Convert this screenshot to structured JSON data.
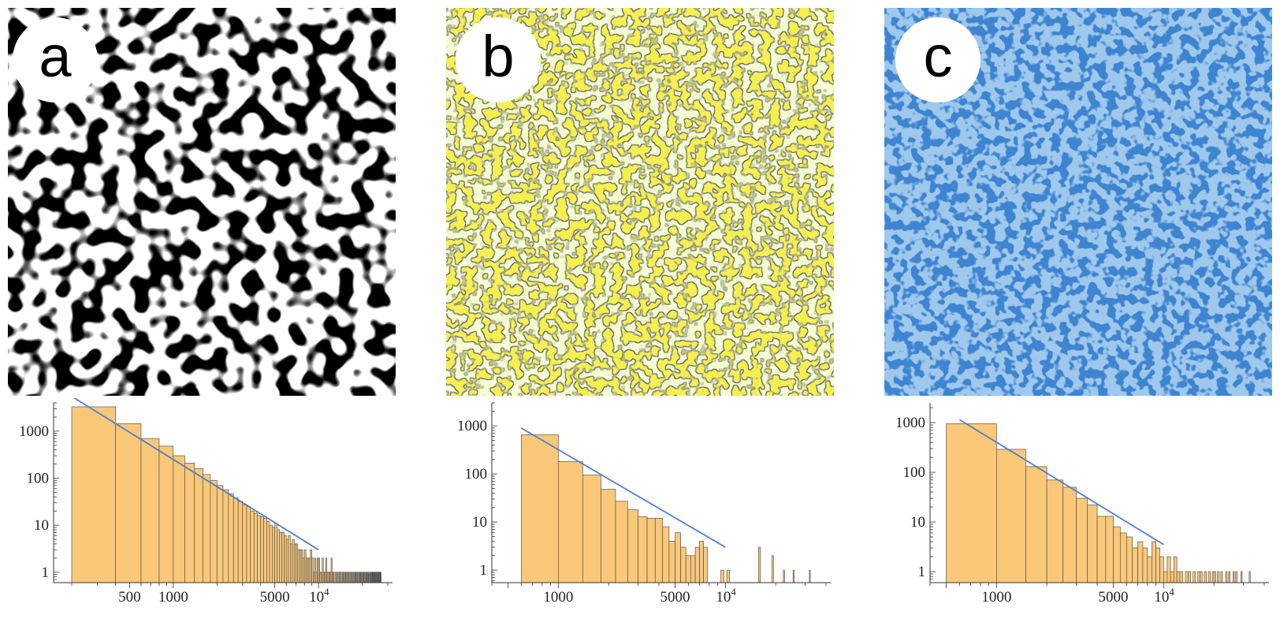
{
  "panels": [
    {
      "label": "a",
      "pattern": {
        "background": "#ffffff",
        "blob": "#000000",
        "stroke": "none",
        "style": "labyrinth"
      },
      "chart_data": {
        "type": "bar",
        "scale": "log-log",
        "xlim": [
          150,
          30000
        ],
        "ylim": [
          0.6,
          4000
        ],
        "x_ticks": [
          {
            "value": 500,
            "label": "500"
          },
          {
            "value": 1000,
            "label": "1000"
          },
          {
            "value": 5000,
            "label": "5000"
          },
          {
            "value": 10000,
            "label": "10",
            "sup": "4"
          }
        ],
        "y_ticks": [
          {
            "value": 1,
            "label": "1"
          },
          {
            "value": 10,
            "label": "10"
          },
          {
            "value": 100,
            "label": "100"
          },
          {
            "value": 1000,
            "label": "1000"
          }
        ],
        "bin_edges": [
          200,
          400,
          600,
          800,
          1000,
          1200,
          1400,
          1600,
          1800,
          2000,
          2200,
          2400,
          2600,
          2800,
          3000,
          3200,
          3400,
          3600,
          3800,
          4000,
          4200,
          4400,
          4600,
          4800,
          5000,
          5200,
          5400,
          5600,
          5800,
          6000,
          6200,
          6400,
          6600,
          6800,
          7000,
          7200,
          7400,
          7600,
          7800,
          8000,
          8200,
          8400,
          8600,
          8800,
          9000,
          9200,
          9400,
          9600,
          9800,
          10000,
          10200,
          10400,
          10600,
          10800,
          11000,
          11200,
          11400,
          11600,
          11800,
          12000,
          12200,
          12400,
          12600,
          12800,
          13000,
          13200,
          13400,
          13600,
          13800,
          14000,
          14200,
          14400,
          14600,
          14800,
          15000,
          15200,
          15400,
          15600,
          15800,
          16000,
          16200,
          16400,
          16600,
          16800,
          17000,
          17200,
          17400,
          17600,
          17800,
          18000,
          18200,
          18400,
          18600,
          18800,
          19000,
          19200,
          19400,
          19600,
          19800,
          20000,
          20200,
          20400,
          20600,
          20800,
          21000,
          21200,
          21400,
          21600,
          21800,
          22000,
          22200,
          22400,
          22600,
          22800,
          23000,
          23200,
          23400,
          23600,
          23800,
          24000,
          24200,
          24400,
          24600,
          24800,
          25000,
          25200,
          25400,
          25600,
          25800,
          26000,
          26200,
          26400,
          26600,
          26800,
          27000
        ],
        "counts": [
          3300,
          1450,
          700,
          480,
          300,
          210,
          160,
          120,
          90,
          70,
          57,
          47,
          38,
          32,
          27,
          25,
          20,
          18,
          16,
          15,
          14,
          12,
          10,
          9,
          11,
          8,
          7,
          7,
          6,
          5,
          6,
          4,
          5,
          4,
          4,
          3,
          3,
          3,
          2,
          3,
          2,
          2,
          2,
          3,
          2,
          1,
          2,
          1,
          2,
          2,
          1,
          1,
          2,
          1,
          1,
          2,
          1,
          1,
          1,
          1,
          2,
          1,
          1,
          0,
          1,
          1,
          0,
          1,
          1,
          1,
          1,
          0,
          1,
          1,
          0,
          1,
          1,
          0,
          1,
          1,
          0,
          1,
          0,
          1,
          1,
          0,
          1,
          0,
          1,
          1,
          0,
          1,
          0,
          1,
          0,
          1,
          1,
          0,
          1,
          0,
          1,
          1,
          0,
          1,
          0,
          1,
          1,
          0,
          1,
          1,
          0,
          1,
          0,
          1,
          1,
          0,
          1,
          1,
          1,
          0,
          1,
          1,
          0,
          1,
          1,
          0,
          1,
          1,
          1,
          1,
          1,
          1,
          1,
          1
        ],
        "fit_line": {
          "x": [
            200,
            10000
          ],
          "y": [
            5500,
            3
          ]
        },
        "colors": {
          "bar": "#fac878",
          "edge": "#555555",
          "fit": "#4f7fc9"
        }
      }
    },
    {
      "label": "b",
      "pattern": {
        "background": "#f5fdd2",
        "blob": "#f5f050",
        "stroke": "#555555",
        "style": "noise"
      },
      "chart_data": {
        "type": "bar",
        "scale": "log-log",
        "xlim": [
          400,
          40000
        ],
        "ylim": [
          0.55,
          3000
        ],
        "x_ticks": [
          {
            "value": 1000,
            "label": "1000"
          },
          {
            "value": 5000,
            "label": "5000"
          },
          {
            "value": 10000,
            "label": "10",
            "sup": "4"
          }
        ],
        "y_ticks": [
          {
            "value": 1,
            "label": "1"
          },
          {
            "value": 10,
            "label": "10"
          },
          {
            "value": 100,
            "label": "100"
          },
          {
            "value": 1000,
            "label": "1000"
          }
        ],
        "bin_edges": [
          600,
          1000,
          1400,
          1800,
          2200,
          2600,
          3000,
          3400,
          3800,
          4200,
          4600,
          5000,
          5400,
          5800,
          6200,
          6600,
          7000,
          7400,
          7800,
          8200,
          8600,
          9000,
          9400,
          9800,
          10200,
          10600,
          11000,
          11400,
          11800,
          12200,
          12600,
          13000,
          13400,
          13800,
          14200,
          14600,
          15000,
          15400,
          15800,
          16200,
          16600,
          17000,
          17400,
          17800,
          18200,
          18600,
          19000,
          19400,
          19800,
          20200,
          20600,
          21000,
          21400,
          21800,
          22200,
          22600,
          23000,
          23400,
          23800,
          24200,
          24600,
          25000,
          25400,
          25800,
          26200,
          26600,
          27000,
          27400,
          27800,
          28200,
          28600,
          29000,
          29400,
          29800,
          30200,
          30600,
          31000,
          31400,
          31800,
          32200,
          32600
        ],
        "counts": [
          650,
          180,
          95,
          48,
          27,
          18,
          13,
          12,
          12,
          8,
          4,
          6,
          3,
          2,
          2,
          3,
          4,
          3,
          0,
          0,
          0,
          0,
          1,
          0,
          1,
          0,
          0,
          0,
          0,
          0,
          0,
          0,
          0,
          0,
          0,
          0,
          0,
          0,
          3,
          0,
          0,
          0,
          0,
          0,
          0,
          0,
          2,
          0,
          0,
          0,
          0,
          0,
          0,
          0,
          1,
          0,
          0,
          0,
          0,
          0,
          0,
          0,
          1,
          0,
          0,
          0,
          0,
          0,
          0,
          0,
          0,
          0,
          0,
          0,
          0,
          0,
          0,
          0,
          1,
          0
        ],
        "fit_line": {
          "x": [
            600,
            10000
          ],
          "y": [
            900,
            3
          ]
        },
        "colors": {
          "bar": "#fac878",
          "edge": "#555555",
          "fit": "#4f7fc9"
        }
      }
    },
    {
      "label": "c",
      "pattern": {
        "background": "#9ec8ec",
        "blob": "#3e84d0",
        "stroke": "none",
        "style": "noise"
      },
      "chart_data": {
        "type": "bar",
        "scale": "log-log",
        "xlim": [
          400,
          40000
        ],
        "ylim": [
          0.6,
          2500
        ],
        "x_ticks": [
          {
            "value": 1000,
            "label": "1000"
          },
          {
            "value": 5000,
            "label": "5000"
          },
          {
            "value": 10000,
            "label": "10",
            "sup": "4"
          }
        ],
        "y_ticks": [
          {
            "value": 1,
            "label": "1"
          },
          {
            "value": 10,
            "label": "10"
          },
          {
            "value": 100,
            "label": "100"
          },
          {
            "value": 1000,
            "label": "1000"
          }
        ],
        "bin_edges": [
          500,
          1000,
          1500,
          2000,
          2500,
          3000,
          3500,
          4000,
          4500,
          5000,
          5500,
          6000,
          6500,
          7000,
          7500,
          8000,
          8500,
          9000,
          9500,
          10000,
          10500,
          11000,
          11500,
          12000,
          12500,
          13000,
          13500,
          14000,
          14500,
          15000,
          15500,
          16000,
          16500,
          17000,
          17500,
          18000,
          18500,
          19000,
          19500,
          20000,
          20500,
          21000,
          21500,
          22000,
          22500,
          23000,
          23500,
          24000,
          24500,
          25000,
          25500,
          26000,
          26500,
          27000,
          27500,
          28000,
          28500,
          29000,
          29500,
          30000,
          30500,
          31000,
          31500,
          32000,
          32500,
          33000
        ],
        "counts": [
          950,
          290,
          130,
          70,
          50,
          30,
          22,
          13,
          13,
          8,
          6,
          5,
          3,
          4,
          3,
          2,
          4,
          3,
          2,
          1,
          2,
          1,
          2,
          1,
          1,
          0,
          1,
          1,
          0,
          1,
          0,
          1,
          1,
          0,
          1,
          0,
          1,
          0,
          1,
          1,
          0,
          1,
          0,
          1,
          0,
          0,
          1,
          0,
          1,
          0,
          0,
          1,
          0,
          1,
          0,
          0,
          0,
          1,
          0,
          0,
          0,
          0,
          0,
          0,
          1
        ],
        "fit_line": {
          "x": [
            600,
            10000
          ],
          "y": [
            1150,
            3.5
          ]
        },
        "colors": {
          "bar": "#fac878",
          "edge": "#555555",
          "fit": "#4f7fc9"
        }
      }
    }
  ]
}
